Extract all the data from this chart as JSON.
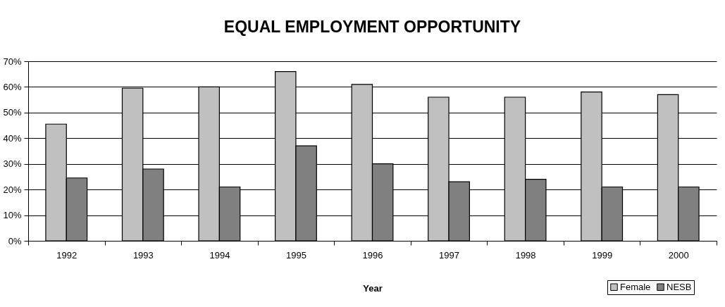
{
  "chart_data": {
    "type": "bar",
    "title": "EQUAL EMPLOYMENT OPPORTUNITY",
    "xlabel": "Year",
    "categories": [
      "1992",
      "1993",
      "1994",
      "1995",
      "1996",
      "1997",
      "1998",
      "1999",
      "2000"
    ],
    "series": [
      {
        "name": "Female",
        "color": "#c0c0c0",
        "values": [
          45.5,
          59.5,
          60,
          66,
          61,
          56,
          56,
          58,
          57
        ]
      },
      {
        "name": "NESB",
        "color": "#808080",
        "values": [
          24.5,
          28,
          21,
          37,
          30,
          23,
          24,
          21,
          21
        ]
      }
    ],
    "ylim": [
      0,
      70
    ],
    "yticks": [
      {
        "value": 0,
        "label": "0%"
      },
      {
        "value": 10,
        "label": "10%"
      },
      {
        "value": 20,
        "label": "20%"
      },
      {
        "value": 30,
        "label": "30%"
      },
      {
        "value": 40,
        "label": "40%"
      },
      {
        "value": 50,
        "label": "50%"
      },
      {
        "value": 60,
        "label": "60%"
      },
      {
        "value": 70,
        "label": "70%"
      }
    ],
    "grid": "y",
    "legend": "bottom right"
  }
}
